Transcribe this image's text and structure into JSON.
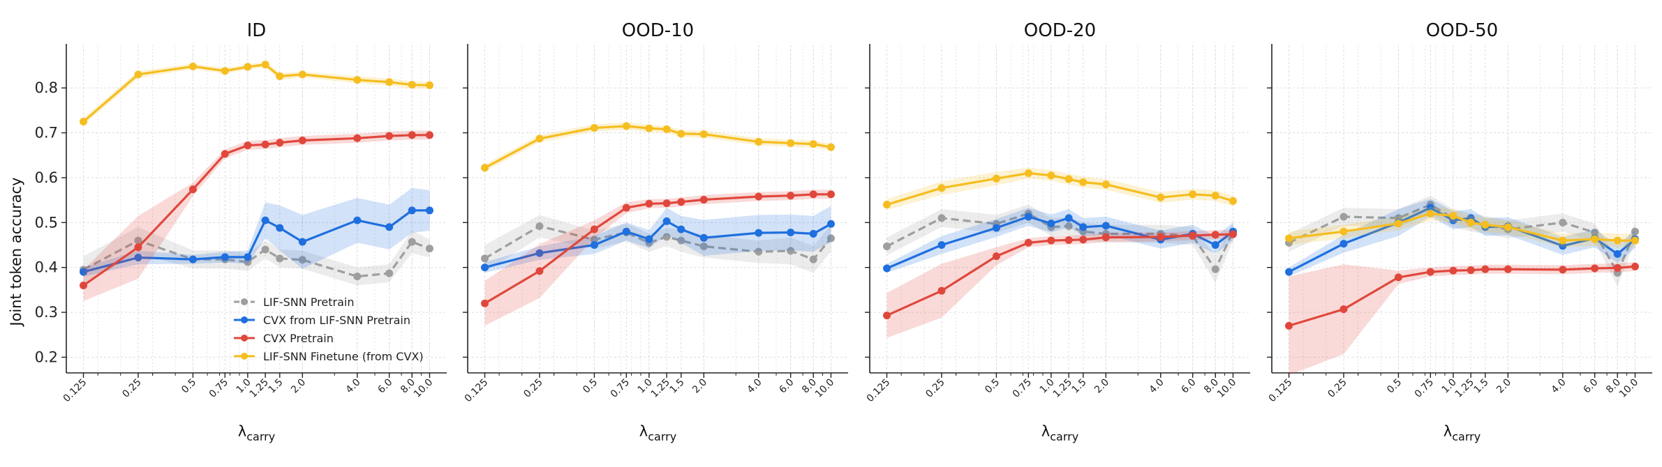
{
  "chart_data": {
    "type": "line",
    "ylabel": "Joint token accuracy",
    "xlabel": "λ",
    "xlabel_sub": "carry",
    "xscale": "log",
    "x": [
      0.125,
      0.25,
      0.5,
      0.75,
      1.0,
      1.25,
      1.5,
      2.0,
      4.0,
      6.0,
      8.0,
      10.0
    ],
    "xtick_labels": [
      "0.125",
      "0.25",
      "0.5",
      "0.75",
      "1.0",
      "1.25",
      "1.5",
      "2.0",
      "4.0",
      "6.0",
      "8.0",
      "10.0"
    ],
    "ylim": [
      0.165,
      0.895
    ],
    "yticks": [
      0.2,
      0.3,
      0.4,
      0.5,
      0.6,
      0.7,
      0.8
    ],
    "ytick_labels": [
      "0.2",
      "0.3",
      "0.4",
      "0.5",
      "0.6",
      "0.7",
      "0.8"
    ],
    "grid": true,
    "shared_y": true,
    "legend_position": "lower-right of first panel",
    "series_styles": [
      {
        "name": "LIF-SNN Pretrain",
        "color": "#9e9e9e",
        "dashed": true
      },
      {
        "name": "CVX from LIF-SNN Pretrain",
        "color": "#1f6fde",
        "dashed": false
      },
      {
        "name": "CVX Pretrain",
        "color": "#e0473c",
        "dashed": false
      },
      {
        "name": "LIF-SNN Finetune (from CVX)",
        "color": "#f5bd1f",
        "dashed": false
      }
    ],
    "panels": [
      {
        "title": "ID",
        "series": [
          {
            "name": "LIF-SNN Pretrain",
            "values": [
              0.395,
              0.46,
              0.418,
              0.418,
              0.412,
              0.44,
              0.42,
              0.417,
              0.38,
              0.387,
              0.457,
              0.442
            ],
            "band": [
              0.03,
              0.03,
              0.02,
              0.02,
              0.02,
              0.02,
              0.02,
              0.02,
              0.02,
              0.02,
              0.025,
              0.02
            ]
          },
          {
            "name": "CVX from LIF-SNN Pretrain",
            "values": [
              0.39,
              0.422,
              0.418,
              0.423,
              0.423,
              0.505,
              0.488,
              0.457,
              0.505,
              0.49,
              0.527,
              0.527
            ],
            "band": [
              0.01,
              0.015,
              0.01,
              0.012,
              0.015,
              0.04,
              0.05,
              0.06,
              0.05,
              0.05,
              0.05,
              0.045
            ]
          },
          {
            "name": "CVX Pretrain",
            "values": [
              0.36,
              0.445,
              0.574,
              0.653,
              0.672,
              0.674,
              0.678,
              0.683,
              0.688,
              0.693,
              0.695,
              0.695
            ],
            "band": [
              0.035,
              0.07,
              0.015,
              0.01,
              0.01,
              0.01,
              0.01,
              0.01,
              0.01,
              0.01,
              0.01,
              0.01
            ]
          },
          {
            "name": "LIF-SNN Finetune (from CVX)",
            "values": [
              0.725,
              0.83,
              0.848,
              0.838,
              0.847,
              0.852,
              0.826,
              0.83,
              0.818,
              0.813,
              0.807,
              0.806
            ],
            "band": [
              0.008,
              0.008,
              0.006,
              0.006,
              0.006,
              0.006,
              0.008,
              0.006,
              0.008,
              0.008,
              0.008,
              0.008
            ]
          }
        ]
      },
      {
        "title": "OOD-10",
        "series": [
          {
            "name": "LIF-SNN Pretrain",
            "values": [
              0.42,
              0.492,
              0.462,
              0.478,
              0.455,
              0.468,
              0.46,
              0.447,
              0.435,
              0.437,
              0.418,
              0.465
            ],
            "band": [
              0.03,
              0.025,
              0.02,
              0.02,
              0.02,
              0.02,
              0.025,
              0.025,
              0.025,
              0.03,
              0.03,
              0.03
            ]
          },
          {
            "name": "CVX from LIF-SNN Pretrain",
            "values": [
              0.4,
              0.432,
              0.45,
              0.48,
              0.463,
              0.503,
              0.485,
              0.466,
              0.477,
              0.478,
              0.475,
              0.497
            ],
            "band": [
              0.012,
              0.015,
              0.02,
              0.02,
              0.02,
              0.03,
              0.03,
              0.04,
              0.04,
              0.04,
              0.04,
              0.04
            ]
          },
          {
            "name": "CVX Pretrain",
            "values": [
              0.32,
              0.392,
              0.485,
              0.533,
              0.542,
              0.543,
              0.546,
              0.551,
              0.558,
              0.56,
              0.563,
              0.563
            ],
            "band": [
              0.05,
              0.06,
              0.02,
              0.012,
              0.01,
              0.01,
              0.01,
              0.01,
              0.01,
              0.01,
              0.01,
              0.01
            ]
          },
          {
            "name": "LIF-SNN Finetune (from CVX)",
            "values": [
              0.622,
              0.687,
              0.711,
              0.715,
              0.71,
              0.708,
              0.698,
              0.697,
              0.68,
              0.677,
              0.675,
              0.668
            ],
            "band": [
              0.008,
              0.008,
              0.008,
              0.008,
              0.008,
              0.008,
              0.008,
              0.008,
              0.008,
              0.008,
              0.008,
              0.008
            ]
          }
        ]
      },
      {
        "title": "OOD-20",
        "series": [
          {
            "name": "LIF-SNN Pretrain",
            "values": [
              0.447,
              0.51,
              0.497,
              0.52,
              0.49,
              0.492,
              0.48,
              0.475,
              0.475,
              0.47,
              0.396,
              0.48
            ],
            "band": [
              0.02,
              0.02,
              0.02,
              0.02,
              0.02,
              0.02,
              0.02,
              0.02,
              0.02,
              0.02,
              0.03,
              0.02
            ]
          },
          {
            "name": "CVX from LIF-SNN Pretrain",
            "values": [
              0.398,
              0.45,
              0.488,
              0.513,
              0.498,
              0.51,
              0.49,
              0.493,
              0.462,
              0.475,
              0.45,
              0.48
            ],
            "band": [
              0.01,
              0.02,
              0.02,
              0.02,
              0.02,
              0.02,
              0.02,
              0.02,
              0.02,
              0.02,
              0.02,
              0.02
            ]
          },
          {
            "name": "CVX Pretrain",
            "values": [
              0.293,
              0.348,
              0.425,
              0.455,
              0.46,
              0.461,
              0.462,
              0.467,
              0.468,
              0.471,
              0.473,
              0.474
            ],
            "band": [
              0.05,
              0.06,
              0.02,
              0.01,
              0.01,
              0.01,
              0.01,
              0.01,
              0.01,
              0.01,
              0.01,
              0.01
            ]
          },
          {
            "name": "LIF-SNN Finetune (from CVX)",
            "values": [
              0.54,
              0.577,
              0.598,
              0.61,
              0.605,
              0.597,
              0.59,
              0.585,
              0.556,
              0.563,
              0.56,
              0.548
            ],
            "band": [
              0.012,
              0.015,
              0.015,
              0.012,
              0.012,
              0.012,
              0.012,
              0.012,
              0.012,
              0.012,
              0.012,
              0.012
            ]
          }
        ]
      },
      {
        "title": "OOD-50",
        "series": [
          {
            "name": "LIF-SNN Pretrain",
            "values": [
              0.455,
              0.513,
              0.51,
              0.54,
              0.51,
              0.5,
              0.495,
              0.485,
              0.5,
              0.478,
              0.388,
              0.48
            ],
            "band": [
              0.02,
              0.02,
              0.02,
              0.02,
              0.02,
              0.02,
              0.02,
              0.02,
              0.02,
              0.02,
              0.03,
              0.02
            ]
          },
          {
            "name": "CVX from LIF-SNN Pretrain",
            "values": [
              0.39,
              0.453,
              0.5,
              0.533,
              0.505,
              0.51,
              0.49,
              0.492,
              0.448,
              0.465,
              0.43,
              0.463
            ],
            "band": [
              0.01,
              0.02,
              0.03,
              0.02,
              0.02,
              0.02,
              0.02,
              0.02,
              0.02,
              0.02,
              0.02,
              0.02
            ]
          },
          {
            "name": "CVX Pretrain",
            "values": [
              0.27,
              0.307,
              0.378,
              0.39,
              0.393,
              0.394,
              0.396,
              0.396,
              0.395,
              0.398,
              0.399,
              0.402
            ],
            "band": [
              0.11,
              0.1,
              0.015,
              0.01,
              0.01,
              0.01,
              0.01,
              0.01,
              0.01,
              0.01,
              0.01,
              0.01
            ]
          },
          {
            "name": "LIF-SNN Finetune (from CVX)",
            "values": [
              0.465,
              0.48,
              0.498,
              0.52,
              0.515,
              0.5,
              0.495,
              0.49,
              0.46,
              0.463,
              0.46,
              0.46
            ],
            "band": [
              0.015,
              0.015,
              0.015,
              0.015,
              0.015,
              0.015,
              0.015,
              0.015,
              0.015,
              0.015,
              0.015,
              0.015
            ]
          }
        ]
      }
    ]
  }
}
